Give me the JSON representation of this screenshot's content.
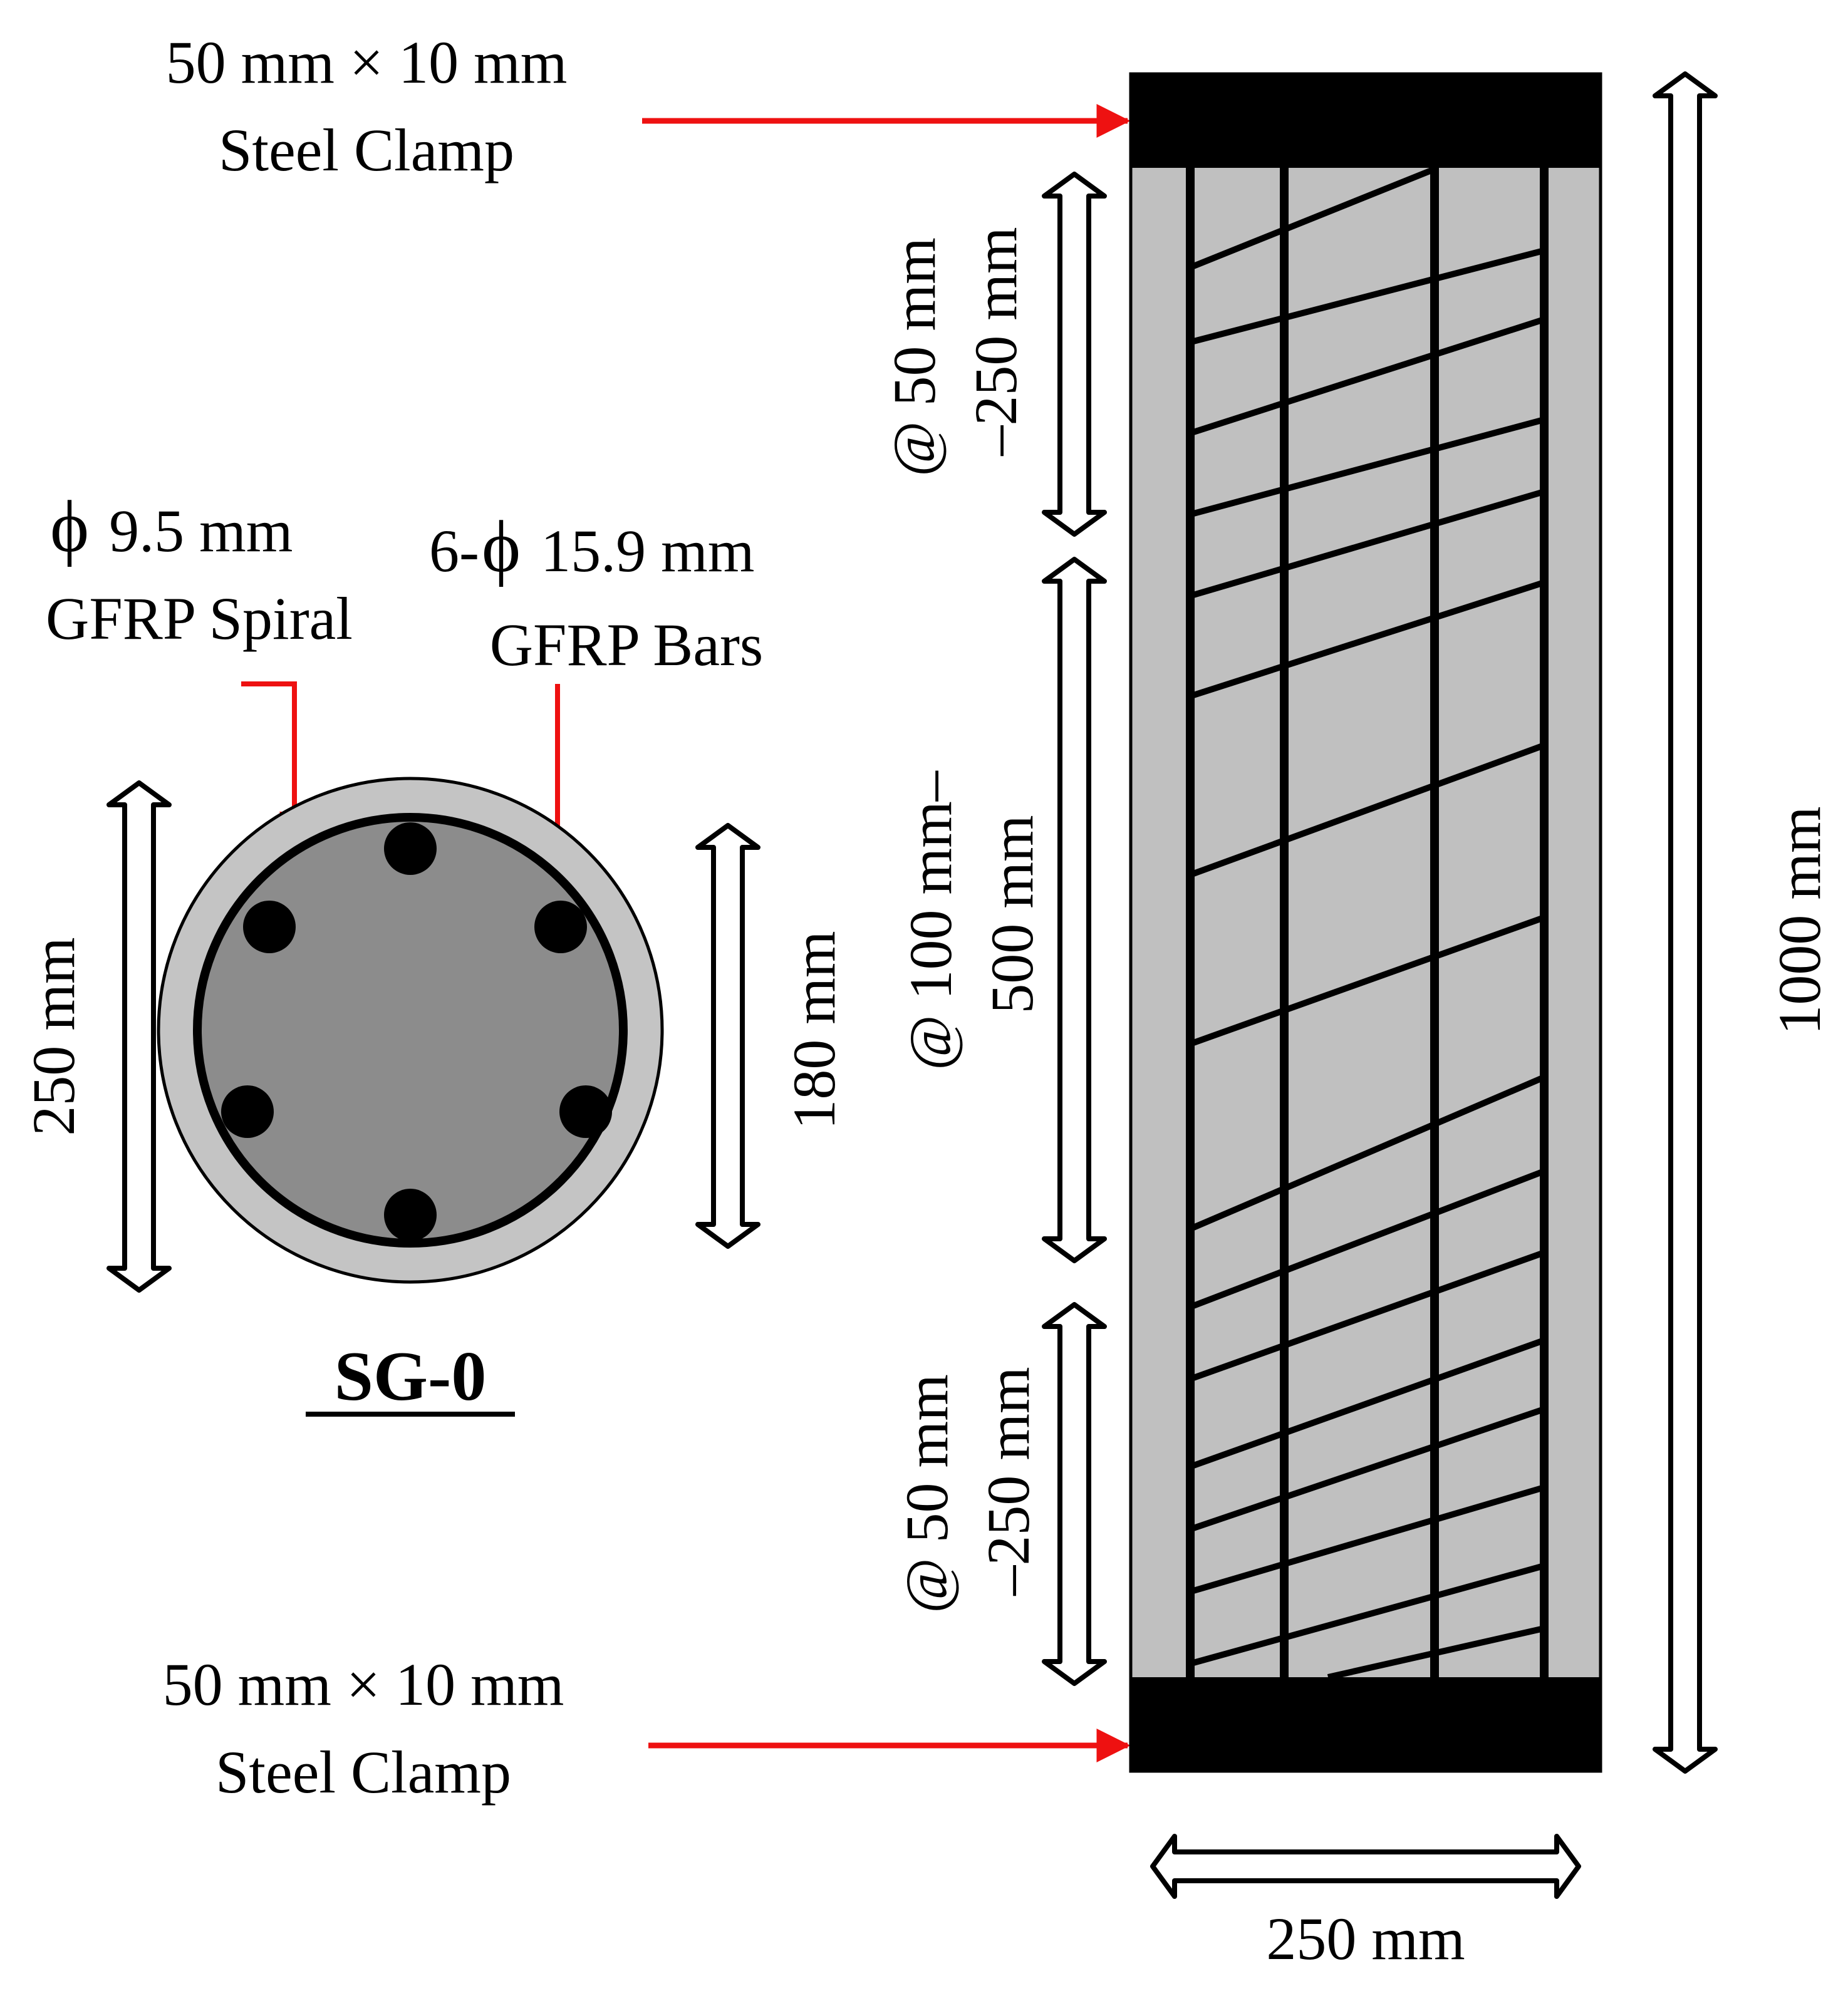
{
  "colors": {
    "concrete_cover": "#c4c4c4",
    "core": "#8c8c8c",
    "column": "#c0c0c0",
    "steel_clamp": "#000000",
    "callout_arrow": "#ee1111",
    "rebar": "#000000"
  },
  "clamp_top": {
    "line1": "50 mm × 10 mm",
    "line2": "Steel Clamp"
  },
  "clamp_bottom": {
    "line1": "50 mm × 10 mm",
    "line2": "Steel Clamp"
  },
  "spiral_label": {
    "symbol": "ϕ",
    "size": "9.5 mm",
    "name": "GFRP Spiral"
  },
  "bars_label": {
    "prefix": "6-",
    "symbol": "ϕ",
    "size": "15.9 mm",
    "name": "GFRP Bars"
  },
  "section": {
    "title": "SG-0",
    "outer_diameter": "250 mm",
    "core_diameter": "180 mm",
    "bar_count": 6
  },
  "elevation": {
    "height": "1000 mm",
    "width": "250 mm",
    "top_zone": {
      "line1": "@ 50 mm",
      "line2": "–250 mm"
    },
    "middle_zone": {
      "line1": "@ 100 mm–",
      "line2": "500 mm"
    },
    "bottom_zone": {
      "line1": "@ 50 mm",
      "line2": "–250 mm"
    }
  }
}
